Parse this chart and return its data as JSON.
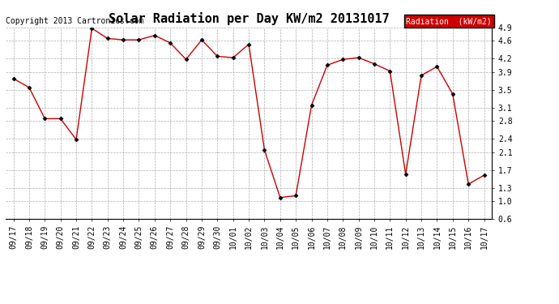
{
  "title": "Solar Radiation per Day KW/m2 20131017",
  "copyright_text": "Copyright 2013 Cartronics.com",
  "legend_label": "Radiation  (kW/m2)",
  "x_labels": [
    "09/17",
    "09/18",
    "09/19",
    "09/20",
    "09/21",
    "09/22",
    "09/23",
    "09/24",
    "09/25",
    "09/26",
    "09/27",
    "09/28",
    "09/29",
    "09/30",
    "10/01",
    "10/02",
    "10/03",
    "10/04",
    "10/05",
    "10/06",
    "10/07",
    "10/08",
    "10/09",
    "10/10",
    "10/11",
    "10/12",
    "10/13",
    "10/14",
    "10/15",
    "10/16",
    "10/17"
  ],
  "y_values": [
    3.75,
    3.55,
    2.85,
    2.85,
    2.38,
    4.88,
    4.65,
    4.62,
    4.62,
    4.72,
    4.55,
    4.18,
    4.62,
    4.25,
    4.22,
    4.52,
    2.15,
    1.08,
    1.12,
    3.15,
    4.05,
    4.18,
    4.22,
    4.08,
    3.92,
    1.6,
    3.82,
    4.02,
    3.4,
    1.38,
    1.58
  ],
  "ylim": [
    0.6,
    4.9
  ],
  "yticks": [
    0.6,
    1.0,
    1.3,
    1.7,
    2.1,
    2.4,
    2.8,
    3.1,
    3.5,
    3.9,
    4.2,
    4.6,
    4.9
  ],
  "line_color": "#cc0000",
  "marker_color": "#000000",
  "bg_color": "#ffffff",
  "plot_bg_color": "#ffffff",
  "grid_color": "#999999",
  "legend_bg": "#cc0000",
  "legend_text_color": "#ffffff",
  "title_fontsize": 11,
  "label_fontsize": 7,
  "copyright_fontsize": 7
}
